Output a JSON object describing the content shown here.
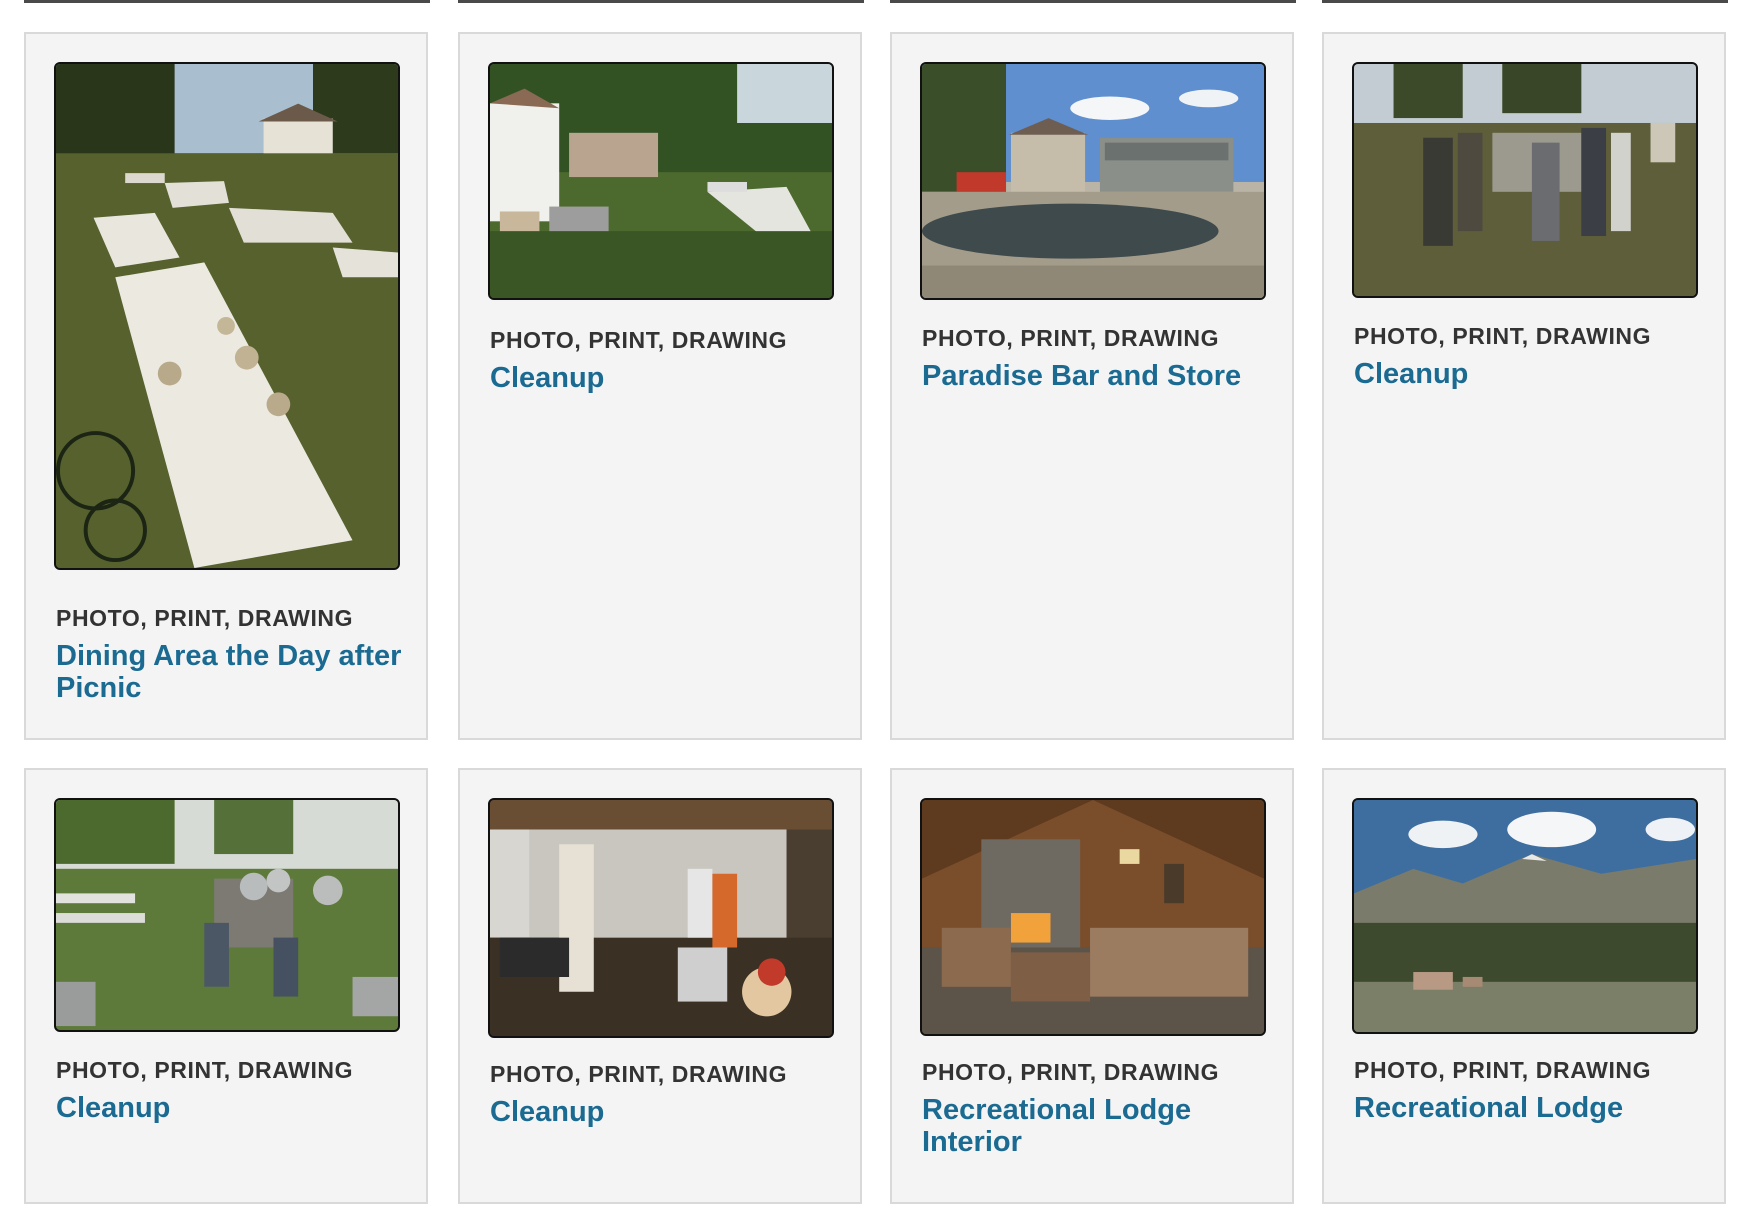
{
  "cards": [
    {
      "type": "PHOTO, PRINT, DRAWING",
      "title": "Dining Area the Day after Picnic",
      "image": "picnic-tables-photo"
    },
    {
      "type": "PHOTO, PRINT, DRAWING",
      "title": "Cleanup",
      "image": "yard-cleanup-photo"
    },
    {
      "type": "PHOTO, PRINT, DRAWING",
      "title": "Paradise Bar and Store",
      "image": "storefront-photo"
    },
    {
      "type": "PHOTO, PRINT, DRAWING",
      "title": "Cleanup",
      "image": "people-truck-photo"
    },
    {
      "type": "PHOTO, PRINT, DRAWING",
      "title": "Cleanup",
      "image": "trailer-cleanup-photo"
    },
    {
      "type": "PHOTO, PRINT, DRAWING",
      "title": "Cleanup",
      "image": "kitchen-cleanup-photo"
    },
    {
      "type": "PHOTO, PRINT, DRAWING",
      "title": "Recreational Lodge Interior",
      "image": "lodge-interior-photo"
    },
    {
      "type": "PHOTO, PRINT, DRAWING",
      "title": "Recreational Lodge",
      "image": "mountain-lodge-photo"
    }
  ]
}
